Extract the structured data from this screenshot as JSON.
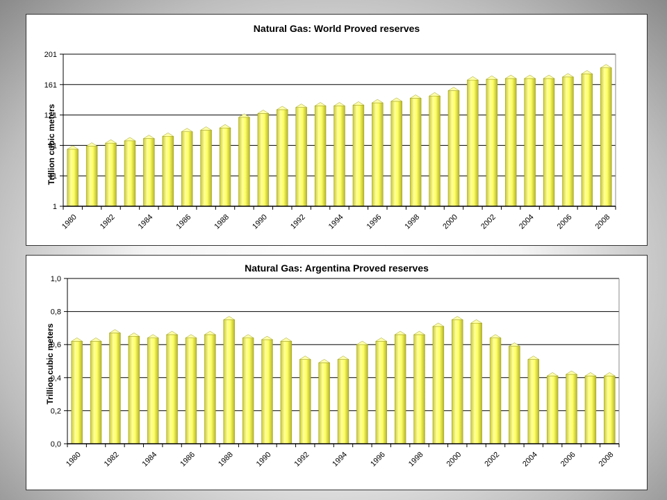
{
  "chart_data": [
    {
      "type": "bar",
      "title": "Natural Gas: World Proved reserves",
      "xlabel": "",
      "ylabel": "Trillion cubic meters",
      "yticks": [
        "1",
        "41",
        "81",
        "121",
        "161",
        "201"
      ],
      "ylim": [
        1,
        201
      ],
      "xtick_labels": [
        "1980",
        "1982",
        "1984",
        "1986",
        "1988",
        "1990",
        "1992",
        "1994",
        "1996",
        "1998",
        "2000",
        "2002",
        "2004",
        "2006",
        "2008"
      ],
      "categories": [
        "1980",
        "1981",
        "1982",
        "1983",
        "1984",
        "1985",
        "1986",
        "1987",
        "1988",
        "1989",
        "1990",
        "1991",
        "1992",
        "1993",
        "1994",
        "1995",
        "1996",
        "1997",
        "1998",
        "1999",
        "2000",
        "2001",
        "2002",
        "2003",
        "2004",
        "2005",
        "2006",
        "2007",
        "2008"
      ],
      "values": [
        76,
        80,
        84,
        87,
        90,
        93,
        99,
        101,
        104,
        118,
        123,
        128,
        131,
        133,
        133,
        134,
        137,
        139,
        143,
        146,
        153,
        167,
        168,
        169,
        169,
        169,
        171,
        175,
        183
      ],
      "grid": true,
      "bar_color": "#ffff66"
    },
    {
      "type": "bar",
      "title": "Natural Gas: Argentina Proved reserves",
      "xlabel": "",
      "ylabel": "Trillion cubic meters",
      "yticks": [
        "0,0",
        "0,2",
        "0,4",
        "0,6",
        "0,8",
        "1,0"
      ],
      "ylim": [
        0,
        1
      ],
      "xtick_labels": [
        "1980",
        "1982",
        "1984",
        "1986",
        "1988",
        "1990",
        "1992",
        "1994",
        "1996",
        "1998",
        "2000",
        "2002",
        "2004",
        "2006",
        "2008"
      ],
      "categories": [
        "1980",
        "1981",
        "1982",
        "1983",
        "1984",
        "1985",
        "1986",
        "1987",
        "1988",
        "1989",
        "1990",
        "1991",
        "1992",
        "1993",
        "1994",
        "1995",
        "1996",
        "1997",
        "1998",
        "1999",
        "2000",
        "2001",
        "2002",
        "2003",
        "2004",
        "2005",
        "2006",
        "2007",
        "2008"
      ],
      "values": [
        0.62,
        0.62,
        0.67,
        0.65,
        0.64,
        0.66,
        0.64,
        0.66,
        0.75,
        0.64,
        0.63,
        0.62,
        0.51,
        0.49,
        0.51,
        0.6,
        0.62,
        0.66,
        0.66,
        0.71,
        0.75,
        0.73,
        0.64,
        0.59,
        0.51,
        0.41,
        0.42,
        0.41,
        0.41
      ],
      "grid": true,
      "bar_color": "#ffff66"
    }
  ]
}
